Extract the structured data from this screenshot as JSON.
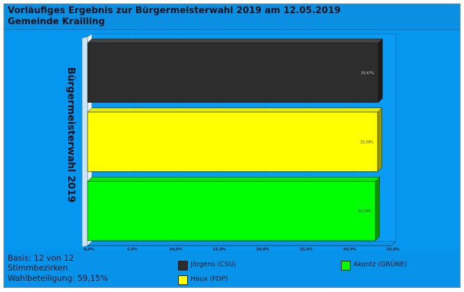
{
  "header": {
    "title_line1": "Vorläufiges Ergebnis zur Bürgermeisterwahl 2019 am 12.05.2019",
    "title_line2": "Gemeinde Krailling"
  },
  "footer": {
    "basis": "Basis: 12 von 12",
    "bezirke": "Stimmbezirken",
    "beteiligung": "Wahlbeteiligung: 59,15%"
  },
  "colors": {
    "background": "#0597ef",
    "csu": "#2d2d2d",
    "fdp": "#ffff00",
    "gruene": "#00ff00"
  },
  "chart_data": {
    "type": "bar",
    "orientation": "horizontal",
    "title": "Vorläufiges Ergebnis zur Bürgermeisterwahl 2019 am 12.05.2019",
    "ylabel": "Bürgermeisterwahl 2019",
    "xlabel": "",
    "xlim": [
      0,
      35
    ],
    "x_ticks": [
      "0,0%",
      "5,0%",
      "10,0%",
      "15,0%",
      "20,0%",
      "25,0%",
      "30,0%",
      "35,0%"
    ],
    "grid": true,
    "legend_position": "bottom",
    "series": [
      {
        "name": "Jörgens (CSU)",
        "value": 33.47,
        "label": "33,47%",
        "color": "#2d2d2d"
      },
      {
        "name": "Haux (FDP)",
        "value": 33.39,
        "label": "33,39%",
        "color": "#ffff00"
      },
      {
        "name": "Akontz (GRÜNE)",
        "value": 33.14,
        "label": "33,14%",
        "color": "#00ff00"
      }
    ]
  }
}
